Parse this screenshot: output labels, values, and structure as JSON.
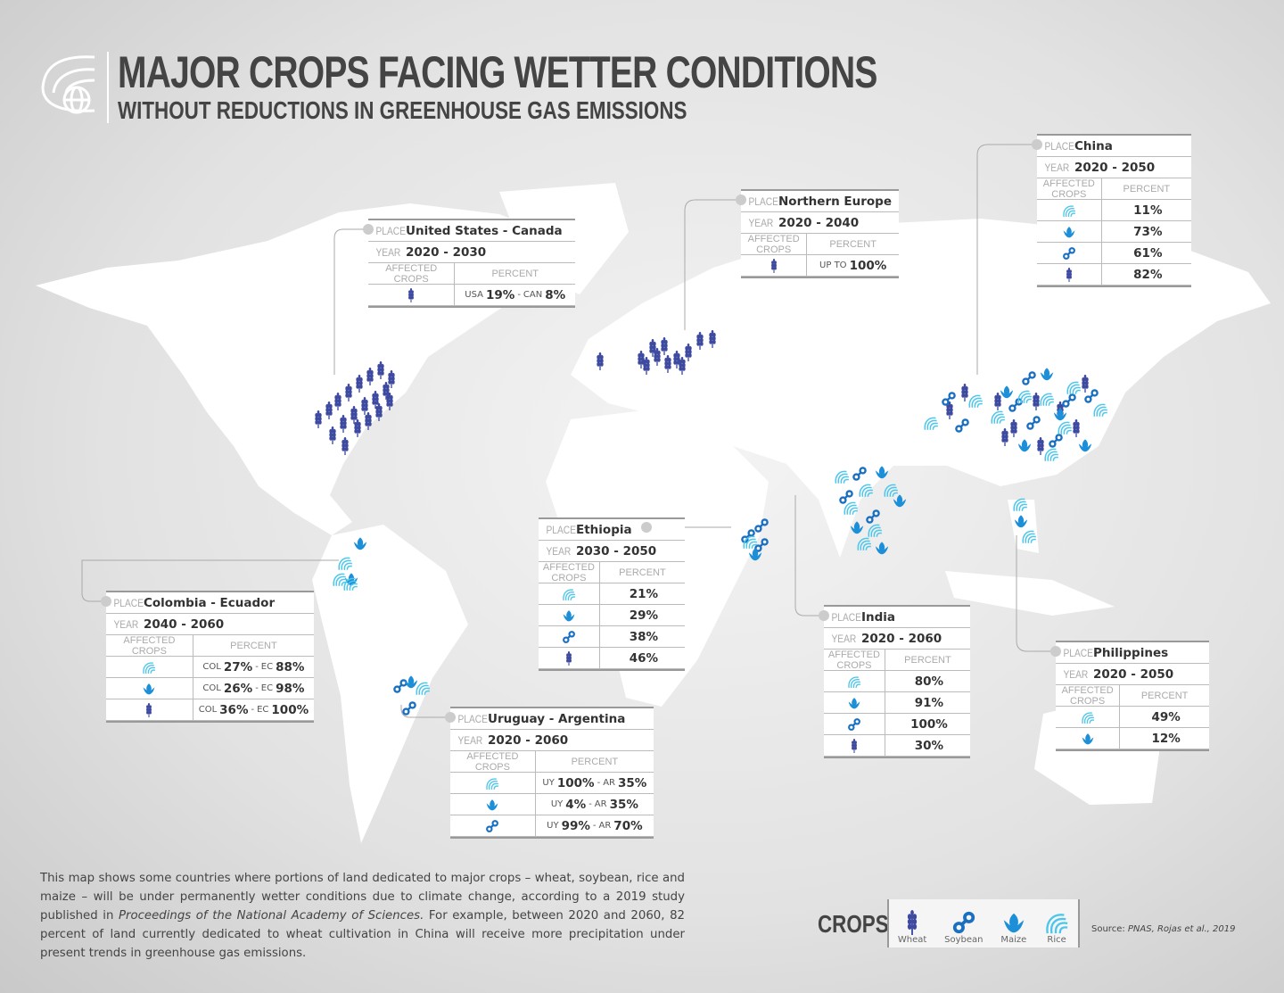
{
  "title": "MAJOR CROPS FACING WETTER CONDITIONS",
  "subtitle": "WITHOUT REDUCTIONS IN GREENHOUSE GAS EMISSIONS",
  "labels": {
    "place": "PLACE",
    "year": "YEAR",
    "affected": "AFFECTED CROPS",
    "percent": "PERCENT"
  },
  "colors": {
    "wheat": "#3d4aa0",
    "soybean": "#1a6fc0",
    "maize": "#1d8fd8",
    "rice": "#4cc6ea",
    "land": "#ffffff"
  },
  "cards": [
    {
      "place": "United States - Canada",
      "year": "2020 - 2030",
      "rows": [
        {
          "crop": "wheat",
          "parts": [
            {
              "pre": "USA",
              "num": "19%"
            },
            {
              "pre": "-",
              "num": ""
            },
            {
              "pre": "CAN",
              "num": "8%"
            }
          ]
        }
      ]
    },
    {
      "place": "Northern Europe",
      "year": "2020 - 2040",
      "rows": [
        {
          "crop": "wheat",
          "parts": [
            {
              "pre": "UP TO",
              "num": "100%"
            }
          ]
        }
      ]
    },
    {
      "place": "China",
      "year": "2020 - 2050",
      "rows": [
        {
          "crop": "rice",
          "parts": [
            {
              "pre": "",
              "num": "11%"
            }
          ]
        },
        {
          "crop": "maize",
          "parts": [
            {
              "pre": "",
              "num": "73%"
            }
          ]
        },
        {
          "crop": "soybean",
          "parts": [
            {
              "pre": "",
              "num": "61%"
            }
          ]
        },
        {
          "crop": "wheat",
          "parts": [
            {
              "pre": "",
              "num": "82%"
            }
          ]
        }
      ]
    },
    {
      "place": "Ethiopia",
      "year": "2030 - 2050",
      "rows": [
        {
          "crop": "rice",
          "parts": [
            {
              "pre": "",
              "num": "21%"
            }
          ]
        },
        {
          "crop": "maize",
          "parts": [
            {
              "pre": "",
              "num": "29%"
            }
          ]
        },
        {
          "crop": "soybean",
          "parts": [
            {
              "pre": "",
              "num": "38%"
            }
          ]
        },
        {
          "crop": "wheat",
          "parts": [
            {
              "pre": "",
              "num": "46%"
            }
          ]
        }
      ]
    },
    {
      "place": "Colombia - Ecuador",
      "year": "2040 - 2060",
      "rows": [
        {
          "crop": "rice",
          "parts": [
            {
              "pre": "COL",
              "num": "27%"
            },
            {
              "pre": "-",
              "num": ""
            },
            {
              "pre": "EC",
              "num": "88%"
            }
          ]
        },
        {
          "crop": "maize",
          "parts": [
            {
              "pre": "COL",
              "num": "26%"
            },
            {
              "pre": "-",
              "num": ""
            },
            {
              "pre": "EC",
              "num": "98%"
            }
          ]
        },
        {
          "crop": "wheat",
          "parts": [
            {
              "pre": "COL",
              "num": "36%"
            },
            {
              "pre": "-",
              "num": ""
            },
            {
              "pre": "EC",
              "num": "100%"
            }
          ]
        }
      ]
    },
    {
      "place": "Uruguay - Argentina",
      "year": "2020 - 2060",
      "rows": [
        {
          "crop": "rice",
          "parts": [
            {
              "pre": "UY",
              "num": "100%"
            },
            {
              "pre": "-",
              "num": ""
            },
            {
              "pre": "AR",
              "num": "35%"
            }
          ]
        },
        {
          "crop": "maize",
          "parts": [
            {
              "pre": "UY",
              "num": "4%"
            },
            {
              "pre": "-",
              "num": ""
            },
            {
              "pre": "AR",
              "num": "35%"
            }
          ]
        },
        {
          "crop": "soybean",
          "parts": [
            {
              "pre": "UY",
              "num": "99%"
            },
            {
              "pre": "-",
              "num": ""
            },
            {
              "pre": "AR",
              "num": "70%"
            }
          ]
        }
      ]
    },
    {
      "place": "India",
      "year": "2020 - 2060",
      "rows": [
        {
          "crop": "rice",
          "parts": [
            {
              "pre": "",
              "num": "80%"
            }
          ]
        },
        {
          "crop": "maize",
          "parts": [
            {
              "pre": "",
              "num": "91%"
            }
          ]
        },
        {
          "crop": "soybean",
          "parts": [
            {
              "pre": "",
              "num": "100%"
            }
          ]
        },
        {
          "crop": "wheat",
          "parts": [
            {
              "pre": "",
              "num": "30%"
            }
          ]
        }
      ]
    },
    {
      "place": "Philippines",
      "year": "2020 - 2050",
      "rows": [
        {
          "crop": "rice",
          "parts": [
            {
              "pre": "",
              "num": "49%"
            }
          ]
        },
        {
          "crop": "maize",
          "parts": [
            {
              "pre": "",
              "num": "12%"
            }
          ]
        }
      ]
    }
  ],
  "description": {
    "before": "This map shows some countries where portions of land dedicated to major crops – wheat, soybean, rice and maize – will be under permanently wetter conditions due to climate change, according to a 2019 study published in ",
    "italic": "Proceedings of the National Academy of Sciences.",
    "after": " For example, between 2020 and 2060, 82 percent of land currently dedicated to wheat cultivation in China will receive more precipitation under present trends in greenhouse gas emissions."
  },
  "legend": {
    "title": "CROPS",
    "items": [
      {
        "crop": "wheat",
        "label": "Wheat"
      },
      {
        "crop": "soybean",
        "label": "Soybean"
      },
      {
        "crop": "maize",
        "label": "Maize"
      },
      {
        "crop": "rice",
        "label": "Rice"
      }
    ]
  },
  "source": {
    "prefix": "Source: ",
    "italic": "PNAS, Rojas et al., 2019"
  }
}
